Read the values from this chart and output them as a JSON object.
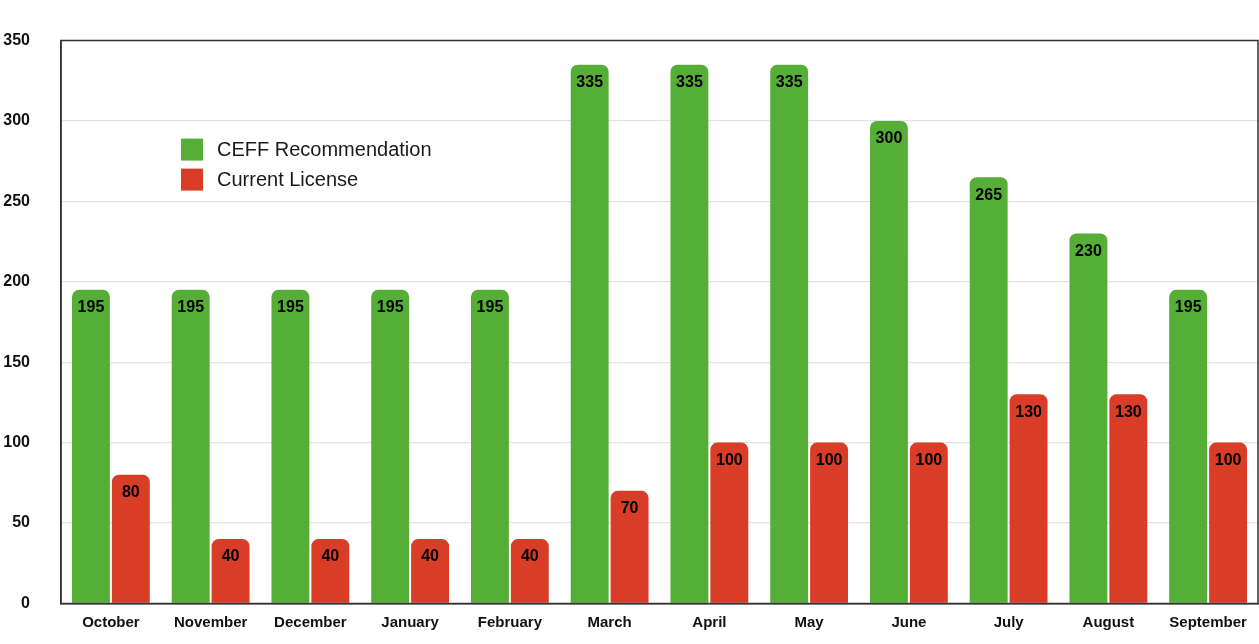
{
  "chart_data": {
    "type": "bar",
    "categories": [
      "October",
      "November",
      "December",
      "January",
      "February",
      "March",
      "April",
      "May",
      "June",
      "July",
      "August",
      "September"
    ],
    "series": [
      {
        "name": "CEFF Recommendation",
        "color": "#55ae35",
        "values": [
          195,
          195,
          195,
          195,
          195,
          335,
          335,
          335,
          300,
          265,
          230,
          195
        ]
      },
      {
        "name": "Current License",
        "color": "#d93d28",
        "values": [
          80,
          40,
          40,
          40,
          40,
          70,
          100,
          100,
          100,
          130,
          130,
          100
        ]
      }
    ],
    "ylim": [
      0,
      350
    ],
    "yticks": [
      0,
      50,
      100,
      150,
      200,
      250,
      300,
      350
    ],
    "grid": "y",
    "legend": "top left",
    "data_labels": true
  }
}
